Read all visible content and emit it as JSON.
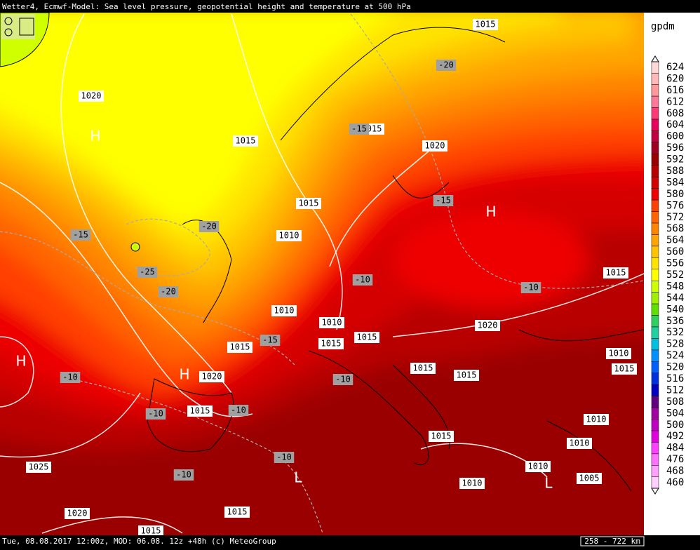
{
  "header": {
    "title": "Wetter4, Ecmwf-Model: Sea level pressure, geopotential height and temperature at 500 hPa"
  },
  "footer": {
    "info": "Tue, 08.08.2017 12:00z, MOD: 06.08. 12z +48h (c) MeteoGroup",
    "scale": "258 - 722 km"
  },
  "legend": {
    "unit": "gpdm",
    "levels": [
      624,
      620,
      616,
      612,
      608,
      604,
      600,
      596,
      592,
      588,
      584,
      580,
      576,
      572,
      568,
      564,
      560,
      556,
      552,
      548,
      544,
      540,
      536,
      532,
      528,
      524,
      520,
      516,
      512,
      508,
      504,
      500,
      492,
      484,
      476,
      468,
      460
    ],
    "colors": [
      "#ffd8d8",
      "#ffb8b8",
      "#ff9898",
      "#ff7898",
      "#ff3878",
      "#e8005a",
      "#c00040",
      "#a00020",
      "#9a0000",
      "#b80000",
      "#d40000",
      "#ee0000",
      "#ff4000",
      "#ff6400",
      "#ff8400",
      "#ffa400",
      "#ffc400",
      "#ffe400",
      "#ffff00",
      "#d0ff00",
      "#a0f000",
      "#60e000",
      "#30d060",
      "#20d0a0",
      "#00c0e0",
      "#0090ff",
      "#0060ff",
      "#0030e0",
      "#0000c0",
      "#600080",
      "#a000a0",
      "#c000c0",
      "#e000e0",
      "#ff40ff",
      "#ff70ff",
      "#ffa0ff",
      "#ffd0ff"
    ]
  },
  "map": {
    "isobar_labels": [
      1015,
      1020,
      1015,
      1015,
      1020,
      1015,
      1010,
      1010,
      1010,
      1020,
      1015,
      1015,
      1015,
      1015,
      1020,
      1015,
      1015,
      1015,
      1010,
      1015,
      1010,
      1015,
      1010,
      1010,
      1005,
      1010,
      1025,
      1020,
      1015,
      1015
    ],
    "temperature_labels": [
      -20,
      -15,
      -15,
      -20,
      -15,
      -25,
      -20,
      -10,
      -10,
      -15,
      -10,
      -10,
      -10,
      -10,
      -10,
      -10
    ],
    "high_markers": [
      "H",
      "H",
      "H",
      "H"
    ],
    "low_markers": [
      "L",
      "L"
    ]
  }
}
